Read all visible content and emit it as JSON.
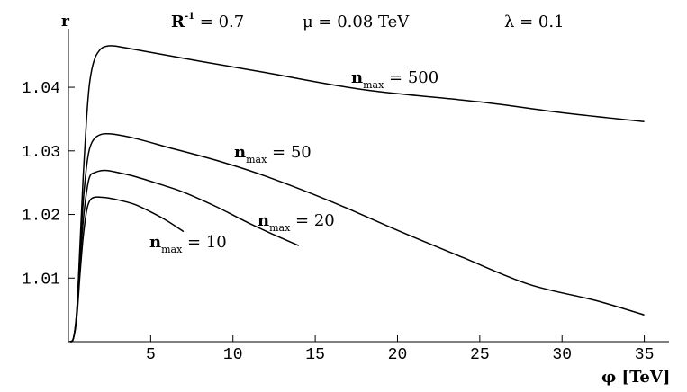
{
  "chart_data": {
    "type": "line",
    "header": {
      "r_label": "r",
      "rinv_base": "R",
      "rinv_exp": "-1",
      "rinv_rest": " = 0.7",
      "mu": "μ = 0.08 TeV",
      "lambda": "λ = 0.1"
    },
    "xlabel": "φ [TeV]",
    "ylabel": "r",
    "xlim": [
      0,
      36.5
    ],
    "ylim": [
      1.0,
      1.0492
    ],
    "x_ticks": [
      5,
      10,
      15,
      20,
      25,
      30,
      35
    ],
    "x_tick_labels": [
      "5",
      "10",
      "15",
      "20",
      "25",
      "30",
      "35"
    ],
    "y_ticks": [
      1.01,
      1.02,
      1.03,
      1.04
    ],
    "y_tick_labels": [
      "1.01",
      "1.02",
      "1.03",
      "1.04"
    ],
    "grid": false,
    "legend": "none",
    "series": [
      {
        "label_base": "n",
        "label_sub": "max",
        "label_rest": " = 500",
        "x": [
          0.1,
          0.3,
          0.5,
          0.7,
          0.9,
          1.1,
          1.3,
          1.6,
          2.0,
          2.4,
          2.8,
          3.5,
          5,
          8,
          12,
          18,
          25,
          30,
          35
        ],
        "y": [
          1.0,
          1.0005,
          1.0045,
          1.015,
          1.026,
          1.035,
          1.041,
          1.0445,
          1.0461,
          1.0465,
          1.0465,
          1.0462,
          1.0455,
          1.0441,
          1.0423,
          1.0396,
          1.0377,
          1.036,
          1.0346
        ]
      },
      {
        "label_base": "n",
        "label_sub": "max",
        "label_rest": " = 50",
        "x": [
          0.1,
          0.3,
          0.5,
          0.7,
          0.9,
          1.1,
          1.3,
          1.6,
          2.0,
          2.3,
          2.8,
          4,
          6,
          9,
          12,
          16,
          20,
          24,
          28,
          32,
          35
        ],
        "y": [
          1.0,
          1.0005,
          1.0045,
          1.014,
          1.022,
          1.0275,
          1.0305,
          1.032,
          1.0326,
          1.0327,
          1.0326,
          1.032,
          1.0306,
          1.0285,
          1.026,
          1.022,
          1.0175,
          1.0132,
          1.009,
          1.0065,
          1.0042
        ]
      },
      {
        "label_base": "n",
        "label_sub": "max",
        "label_rest": " = 20",
        "x": [
          0.1,
          0.3,
          0.5,
          0.7,
          0.9,
          1.1,
          1.3,
          1.6,
          2.0,
          2.4,
          3,
          4,
          5.5,
          7,
          9,
          11,
          12.5,
          14
        ],
        "y": [
          1.0,
          1.0005,
          1.004,
          1.0125,
          1.019,
          1.0235,
          1.026,
          1.0266,
          1.0269,
          1.0269,
          1.0266,
          1.026,
          1.0248,
          1.0235,
          1.0212,
          1.0186,
          1.0168,
          1.0151
        ]
      },
      {
        "label_base": "n",
        "label_sub": "max",
        "label_rest": " = 10",
        "x": [
          0.1,
          0.3,
          0.5,
          0.7,
          0.9,
          1.1,
          1.3,
          1.6,
          2.0,
          2.4,
          3,
          4,
          5,
          6,
          7
        ],
        "y": [
          1.0,
          1.0005,
          1.0035,
          1.0105,
          1.0165,
          1.0205,
          1.0222,
          1.0227,
          1.0227,
          1.0226,
          1.0223,
          1.0216,
          1.0204,
          1.019,
          1.0173
        ]
      }
    ]
  }
}
